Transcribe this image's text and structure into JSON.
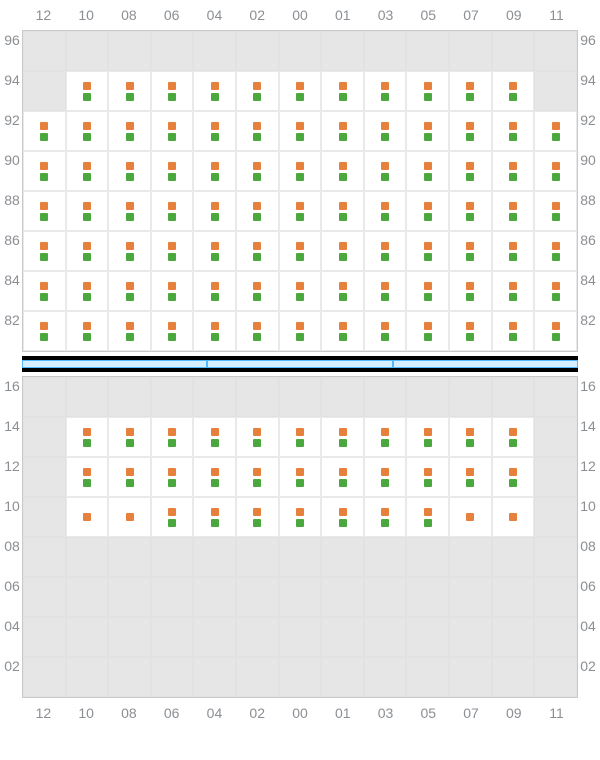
{
  "colors": {
    "marker_top": "#e5813c",
    "marker_bottom": "#4aa83f",
    "grid_bg": "#e6e6e6",
    "cell_on_bg": "#ffffff",
    "label": "#8b8f94",
    "divider_fill": "#d6efff",
    "divider_border": "#52b9ff",
    "divider_bar": "#000000"
  },
  "columns": [
    "12",
    "10",
    "08",
    "06",
    "04",
    "02",
    "00",
    "01",
    "03",
    "05",
    "07",
    "09",
    "11"
  ],
  "top": {
    "rows": [
      "96",
      "94",
      "92",
      "90",
      "88",
      "86",
      "84",
      "82"
    ],
    "cells": {
      "96": {},
      "94": {
        "10": 2,
        "08": 2,
        "06": 2,
        "04": 2,
        "02": 2,
        "00": 2,
        "01": 2,
        "03": 2,
        "05": 2,
        "07": 2,
        "09": 2
      },
      "92": {
        "12": 2,
        "10": 2,
        "08": 2,
        "06": 2,
        "04": 2,
        "02": 2,
        "00": 2,
        "01": 2,
        "03": 2,
        "05": 2,
        "07": 2,
        "09": 2,
        "11": 2
      },
      "90": {
        "12": 2,
        "10": 2,
        "08": 2,
        "06": 2,
        "04": 2,
        "02": 2,
        "00": 2,
        "01": 2,
        "03": 2,
        "05": 2,
        "07": 2,
        "09": 2,
        "11": 2
      },
      "88": {
        "12": 2,
        "10": 2,
        "08": 2,
        "06": 2,
        "04": 2,
        "02": 2,
        "00": 2,
        "01": 2,
        "03": 2,
        "05": 2,
        "07": 2,
        "09": 2,
        "11": 2
      },
      "86": {
        "12": 2,
        "10": 2,
        "08": 2,
        "06": 2,
        "04": 2,
        "02": 2,
        "00": 2,
        "01": 2,
        "03": 2,
        "05": 2,
        "07": 2,
        "09": 2,
        "11": 2
      },
      "84": {
        "12": 2,
        "10": 2,
        "08": 2,
        "06": 2,
        "04": 2,
        "02": 2,
        "00": 2,
        "01": 2,
        "03": 2,
        "05": 2,
        "07": 2,
        "09": 2,
        "11": 2
      },
      "82": {
        "12": 2,
        "10": 2,
        "08": 2,
        "06": 2,
        "04": 2,
        "02": 2,
        "00": 2,
        "01": 2,
        "03": 2,
        "05": 2,
        "07": 2,
        "09": 2,
        "11": 2
      }
    }
  },
  "bottom": {
    "rows": [
      "16",
      "14",
      "12",
      "10",
      "08",
      "06",
      "04",
      "02"
    ],
    "cells": {
      "16": {},
      "14": {
        "10": 2,
        "08": 2,
        "06": 2,
        "04": 2,
        "02": 2,
        "00": 2,
        "01": 2,
        "03": 2,
        "05": 2,
        "07": 2,
        "09": 2
      },
      "12": {
        "10": 2,
        "08": 2,
        "06": 2,
        "04": 2,
        "02": 2,
        "00": 2,
        "01": 2,
        "03": 2,
        "05": 2,
        "07": 2,
        "09": 2
      },
      "10": {
        "10": 1,
        "08": 1,
        "06": 2,
        "04": 2,
        "02": 2,
        "00": 2,
        "01": 2,
        "03": 2,
        "05": 2,
        "07": 1,
        "09": 1
      },
      "08": {},
      "06": {},
      "04": {},
      "02": {}
    }
  },
  "divider_segments": 3
}
